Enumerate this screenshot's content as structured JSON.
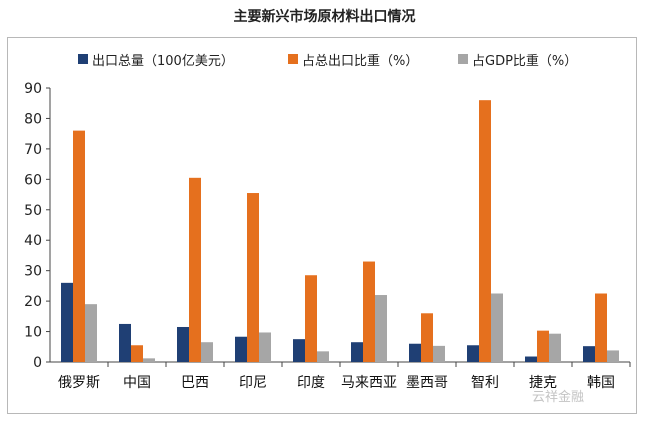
{
  "chart_data": {
    "type": "bar",
    "title": "主要新兴市场原材料出口情况",
    "categories": [
      "俄罗斯",
      "中国",
      "巴西",
      "印尼",
      "印度",
      "马来西亚",
      "墨西哥",
      "智利",
      "捷克",
      "韩国"
    ],
    "series": [
      {
        "name": "出口总量（100亿美元）",
        "color": "#1f3f74",
        "values": [
          26,
          12.5,
          11.5,
          8.3,
          7.5,
          6.5,
          6,
          5.5,
          1.8,
          5.2
        ]
      },
      {
        "name": "占总出口比重（%）",
        "color": "#e5701e",
        "values": [
          76,
          5.5,
          60.5,
          55.5,
          28.5,
          33,
          16,
          86,
          10.3,
          22.5
        ]
      },
      {
        "name": "占GDP比重（%）",
        "color": "#a6a6a6",
        "values": [
          19,
          1.2,
          6.5,
          9.7,
          3.5,
          22,
          5.3,
          22.5,
          9.3,
          3.8
        ]
      }
    ],
    "ylim": [
      0,
      90
    ],
    "yticks": [
      0,
      10,
      20,
      30,
      40,
      50,
      60,
      70,
      80,
      90
    ],
    "grid": false,
    "legend": "top"
  },
  "watermark": "云祥金融"
}
